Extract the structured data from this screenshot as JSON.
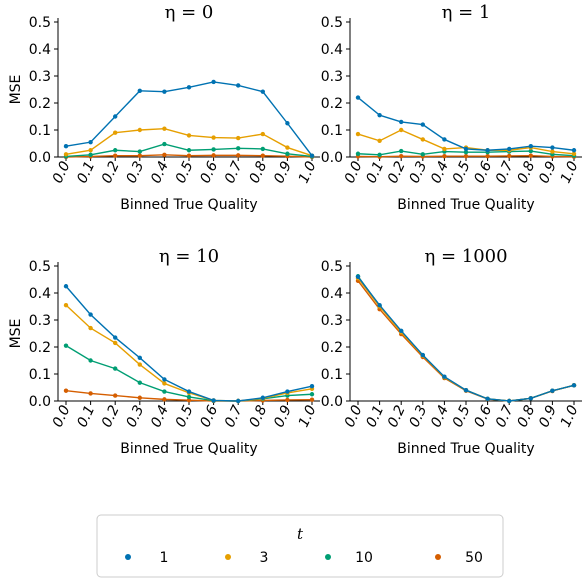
{
  "chart_data": [
    {
      "type": "line",
      "title": "η = 0",
      "xlabel": "Binned True Quality",
      "ylabel": "MSE",
      "ylim": [
        0,
        0.5
      ],
      "yticks": [
        "0.0",
        "0.1",
        "0.2",
        "0.3",
        "0.4",
        "0.5"
      ],
      "categories": [
        "0.0",
        "0.1",
        "0.2",
        "0.3",
        "0.4",
        "0.5",
        "0.6",
        "0.7",
        "0.8",
        "0.9",
        "1.0"
      ],
      "series": [
        {
          "name": "1",
          "values": [
            0.04,
            0.055,
            0.15,
            0.245,
            0.242,
            0.258,
            0.278,
            0.265,
            0.242,
            0.125,
            0.005
          ]
        },
        {
          "name": "3",
          "values": [
            0.01,
            0.025,
            0.09,
            0.1,
            0.105,
            0.08,
            0.072,
            0.07,
            0.085,
            0.035,
            0.005
          ]
        },
        {
          "name": "10",
          "values": [
            0.002,
            0.008,
            0.025,
            0.02,
            0.048,
            0.025,
            0.028,
            0.032,
            0.03,
            0.012,
            0.002
          ]
        },
        {
          "name": "50",
          "values": [
            0.0,
            0.002,
            0.005,
            0.005,
            0.008,
            0.005,
            0.006,
            0.006,
            0.005,
            0.003,
            0.0
          ]
        }
      ]
    },
    {
      "type": "line",
      "title": "η = 1",
      "xlabel": "Binned True Quality",
      "ylabel": "",
      "ylim": [
        0,
        0.5
      ],
      "yticks": [
        "0.0",
        "0.1",
        "0.2",
        "0.3",
        "0.4",
        "0.5"
      ],
      "categories": [
        "0.0",
        "0.1",
        "0.2",
        "0.3",
        "0.4",
        "0.5",
        "0.6",
        "0.7",
        "0.8",
        "0.9",
        "1.0"
      ],
      "series": [
        {
          "name": "1",
          "values": [
            0.22,
            0.155,
            0.13,
            0.12,
            0.065,
            0.03,
            0.025,
            0.03,
            0.04,
            0.035,
            0.025
          ]
        },
        {
          "name": "3",
          "values": [
            0.085,
            0.06,
            0.1,
            0.065,
            0.03,
            0.035,
            0.025,
            0.025,
            0.035,
            0.02,
            0.012
          ]
        },
        {
          "name": "10",
          "values": [
            0.012,
            0.008,
            0.022,
            0.01,
            0.02,
            0.018,
            0.018,
            0.02,
            0.022,
            0.01,
            0.005
          ]
        },
        {
          "name": "50",
          "values": [
            0.002,
            0.001,
            0.003,
            0.002,
            0.003,
            0.003,
            0.003,
            0.004,
            0.005,
            0.002,
            0.001
          ]
        }
      ]
    },
    {
      "type": "line",
      "title": "η = 10",
      "xlabel": "Binned True Quality",
      "ylabel": "MSE",
      "ylim": [
        0,
        0.5
      ],
      "yticks": [
        "0.0",
        "0.1",
        "0.2",
        "0.3",
        "0.4",
        "0.5"
      ],
      "categories": [
        "0.0",
        "0.1",
        "0.2",
        "0.3",
        "0.4",
        "0.5",
        "0.6",
        "0.7",
        "0.8",
        "0.9",
        "1.0"
      ],
      "series": [
        {
          "name": "1",
          "values": [
            0.425,
            0.32,
            0.235,
            0.16,
            0.08,
            0.035,
            0.002,
            0.0,
            0.012,
            0.035,
            0.055
          ]
        },
        {
          "name": "3",
          "values": [
            0.355,
            0.27,
            0.215,
            0.135,
            0.065,
            0.03,
            0.002,
            0.0,
            0.01,
            0.03,
            0.045
          ]
        },
        {
          "name": "10",
          "values": [
            0.205,
            0.15,
            0.12,
            0.068,
            0.035,
            0.015,
            0.001,
            0.0,
            0.008,
            0.02,
            0.025
          ]
        },
        {
          "name": "50",
          "values": [
            0.038,
            0.028,
            0.02,
            0.012,
            0.006,
            0.003,
            0.0,
            0.0,
            0.002,
            0.004,
            0.005
          ]
        }
      ]
    },
    {
      "type": "line",
      "title": "η = 1000",
      "xlabel": "Binned True Quality",
      "ylabel": "",
      "ylim": [
        0,
        0.5
      ],
      "yticks": [
        "0.0",
        "0.1",
        "0.2",
        "0.3",
        "0.4",
        "0.5"
      ],
      "categories": [
        "0.0",
        "0.1",
        "0.2",
        "0.3",
        "0.4",
        "0.5",
        "0.6",
        "0.7",
        "0.8",
        "0.9",
        "1.0"
      ],
      "series": [
        {
          "name": "1",
          "values": [
            0.46,
            0.355,
            0.26,
            0.17,
            0.09,
            0.04,
            0.008,
            0.0,
            0.01,
            0.038,
            0.058
          ]
        },
        {
          "name": "3",
          "values": [
            0.455,
            0.35,
            0.255,
            0.168,
            0.088,
            0.04,
            0.008,
            0.0,
            0.01,
            0.038,
            0.058
          ]
        },
        {
          "name": "10",
          "values": [
            0.462,
            0.352,
            0.258,
            0.17,
            0.088,
            0.04,
            0.008,
            0.0,
            0.01,
            0.038,
            0.058
          ]
        },
        {
          "name": "50",
          "values": [
            0.445,
            0.34,
            0.248,
            0.163,
            0.085,
            0.038,
            0.007,
            0.0,
            0.01,
            0.037,
            0.058
          ]
        }
      ]
    }
  ],
  "colors": {
    "1": "#0072b2",
    "3": "#e69f00",
    "10": "#009e73",
    "50": "#d55e00"
  },
  "legend": {
    "title": "t",
    "entries": [
      "1",
      "3",
      "10",
      "50"
    ]
  }
}
